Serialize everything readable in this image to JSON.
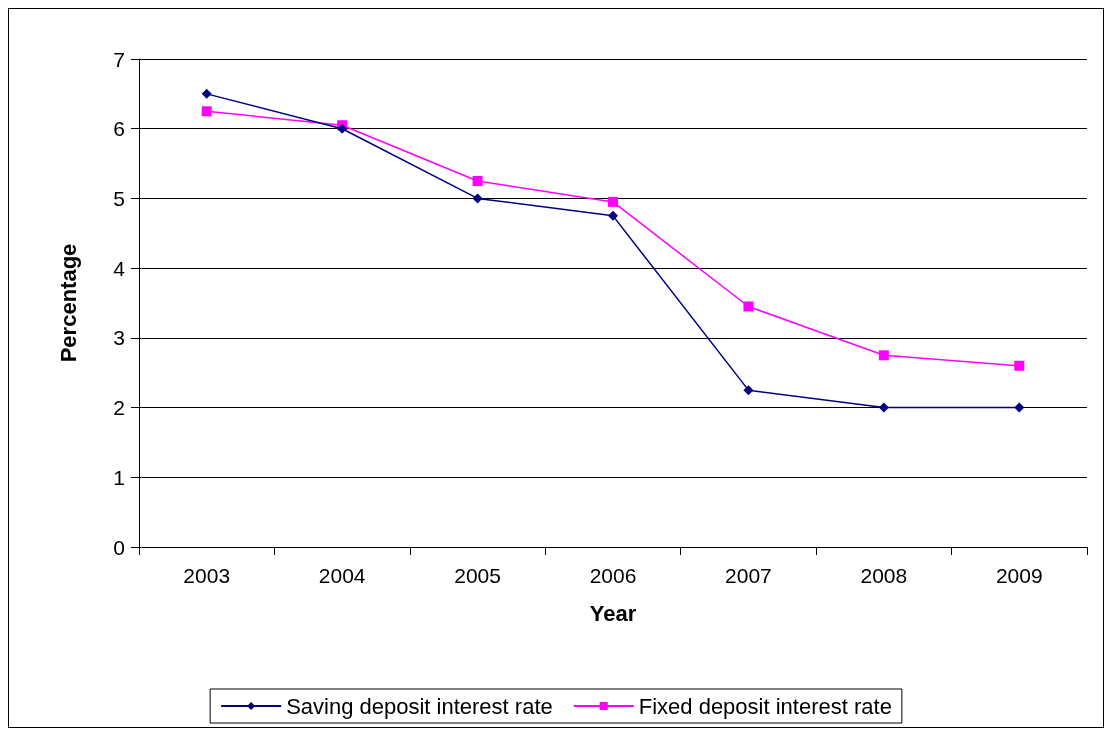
{
  "chart_data": {
    "type": "line",
    "xlabel": "Year",
    "ylabel": "Percentage",
    "categories": [
      "2003",
      "2004",
      "2005",
      "2006",
      "2007",
      "2008",
      "2009"
    ],
    "series": [
      {
        "name": "Saving deposit interest rate",
        "color": "#000080",
        "marker": "diamond",
        "values": [
          6.5,
          6.0,
          5.0,
          4.75,
          2.25,
          2.0,
          2.0
        ]
      },
      {
        "name": "Fixed deposit interest rate",
        "color": "#ff00ff",
        "marker": "square",
        "values": [
          6.25,
          6.05,
          5.25,
          4.95,
          3.45,
          2.75,
          2.6
        ]
      }
    ],
    "ylim": [
      0,
      7
    ],
    "yticks": [
      0,
      1,
      2,
      3,
      4,
      5,
      6,
      7
    ],
    "grid": "y",
    "legend": "bottom"
  }
}
